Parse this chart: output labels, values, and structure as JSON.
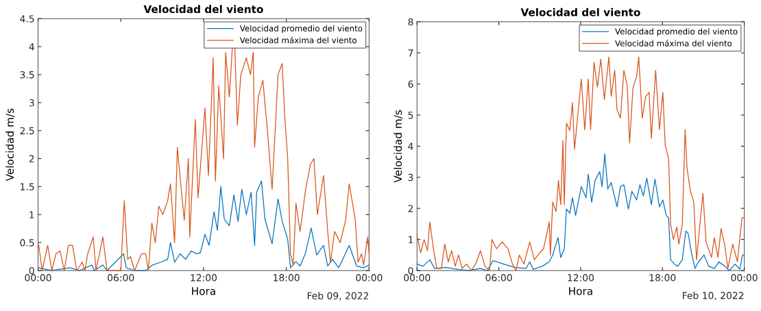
{
  "chart_data": [
    {
      "type": "line",
      "title": "Velocidad del viento",
      "xlabel": "Hora",
      "ylabel": "Velocidad m/s",
      "annotations": [
        "Feb 09, 2022"
      ],
      "xlim": [
        0,
        24
      ],
      "xticks": [
        {
          "value": 0,
          "label": "00:00"
        },
        {
          "value": 6,
          "label": "06:00"
        },
        {
          "value": 12,
          "label": "12:00"
        },
        {
          "value": 18,
          "label": "18:00"
        },
        {
          "value": 24,
          "label": "00:00"
        }
      ],
      "ylim": [
        0,
        4.5
      ],
      "yticks": [
        0,
        0.5,
        1,
        1.5,
        2,
        2.5,
        3,
        3.5,
        4,
        4.5
      ],
      "legend": "top right",
      "grid": false,
      "series": [
        {
          "name": "Velocidad promedio del viento",
          "color": "#0072bd",
          "x": [
            0,
            1,
            2.3,
            3,
            3.9,
            4.1,
            4.7,
            5,
            6.2,
            6.4,
            7,
            7.8,
            8.3,
            8.9,
            9.4,
            9.6,
            9.9,
            10.3,
            10.7,
            11.1,
            11.5,
            11.77,
            12.1,
            12.4,
            12.76,
            13.0,
            13.25,
            13.5,
            13.87,
            14.2,
            14.5,
            14.77,
            15.1,
            15.45,
            15.7,
            15.85,
            16.2,
            16.45,
            16.97,
            17.4,
            17.7,
            18.1,
            18.3,
            18.7,
            19.0,
            19.4,
            19.8,
            20.2,
            20.7,
            21.0,
            21.35,
            21.8,
            22.56,
            23.1,
            23.6,
            24
          ],
          "values": [
            0.05,
            0,
            0.05,
            0,
            0.1,
            0,
            0.1,
            0,
            0.3,
            0.05,
            0,
            0,
            0.1,
            0.15,
            0.2,
            0.5,
            0.15,
            0.3,
            0.2,
            0.35,
            0.3,
            0.32,
            0.65,
            0.45,
            1.05,
            0.72,
            1.5,
            0.92,
            0.8,
            1.35,
            0.88,
            1.45,
            1.0,
            1.4,
            0.45,
            1.4,
            1.6,
            0.92,
            0.48,
            1.28,
            0.88,
            0.56,
            0.05,
            0.16,
            0.08,
            0.32,
            0.76,
            0.28,
            0.45,
            0.08,
            0.2,
            0.05,
            0.45,
            0.08,
            0.05,
            0.1
          ]
        },
        {
          "name": "Velocidad máxima del viento",
          "color": "#d95319",
          "x": [
            0.05,
            0.3,
            0.7,
            1.0,
            1.3,
            1.6,
            1.9,
            2.2,
            2.5,
            2.8,
            3.2,
            3.4,
            3.6,
            4.0,
            4.2,
            4.7,
            5.0,
            5.5,
            6.0,
            6.25,
            6.5,
            6.7,
            7.0,
            7.5,
            7.8,
            8.0,
            8.25,
            8.5,
            8.75,
            9.05,
            9.4,
            9.6,
            9.9,
            10.1,
            10.4,
            10.6,
            10.9,
            11.0,
            11.4,
            11.6,
            12.1,
            12.35,
            12.7,
            12.86,
            13.1,
            13.45,
            13.6,
            13.87,
            14.2,
            14.45,
            14.7,
            15.1,
            15.4,
            15.6,
            15.7,
            15.97,
            16.3,
            16.63,
            16.97,
            17.4,
            17.7,
            17.9,
            18.1,
            18.3,
            18.5,
            18.7,
            19.0,
            19.4,
            19.75,
            20.0,
            20.25,
            20.7,
            21.0,
            21.2,
            21.5,
            21.9,
            22.3,
            22.56,
            23.0,
            23.2,
            23.45,
            23.6,
            23.9,
            24
          ],
          "values": [
            0.45,
            0,
            0.45,
            0,
            0.3,
            0.35,
            0,
            0.45,
            0.45,
            0,
            0.15,
            0,
            0.3,
            0.6,
            0,
            0.6,
            0,
            0,
            0,
            1.25,
            0.2,
            0.25,
            0,
            0.3,
            0.3,
            0,
            0.85,
            0.5,
            1.15,
            1.0,
            1.25,
            1.55,
            0.5,
            2.2,
            1.4,
            0.9,
            2.0,
            0.6,
            2.7,
            1.3,
            2.9,
            1.7,
            3.8,
            1.6,
            3.3,
            2.0,
            3.9,
            3.1,
            4.45,
            2.6,
            3.5,
            3.8,
            3.5,
            3.9,
            2.2,
            3.1,
            3.4,
            2.5,
            1.45,
            3.5,
            3.7,
            2.7,
            2.0,
            0.3,
            0.1,
            1.2,
            0.7,
            1.45,
            1.9,
            2.0,
            1.0,
            1.7,
            0.7,
            0.15,
            0.7,
            0.5,
            0.9,
            1.55,
            0.9,
            0.15,
            0.3,
            0.1,
            0.6,
            0.3
          ]
        }
      ]
    },
    {
      "type": "line",
      "title": "Velocidad del viento",
      "xlabel": "Hora",
      "ylabel": "Velocidad m/s",
      "annotations": [
        "Feb 10, 2022"
      ],
      "xlim": [
        0,
        24
      ],
      "xticks": [
        {
          "value": 0,
          "label": "00:00"
        },
        {
          "value": 6,
          "label": "06:00"
        },
        {
          "value": 12,
          "label": "12:00"
        },
        {
          "value": 18,
          "label": "18:00"
        },
        {
          "value": 24,
          "label": "00:00"
        }
      ],
      "ylim": [
        0,
        8
      ],
      "yticks": [
        0,
        1,
        2,
        3,
        4,
        5,
        6,
        7,
        8
      ],
      "legend": "top right",
      "grid": false,
      "series": [
        {
          "name": "Velocidad promedio del viento",
          "color": "#0072bd",
          "x": [
            0,
            0.44,
            0.94,
            1.28,
            2.12,
            2.96,
            3.8,
            4.65,
            5.15,
            5.57,
            6.33,
            7.17,
            8.0,
            8.27,
            8.52,
            9.19,
            9.7,
            9.95,
            10.34,
            10.54,
            10.8,
            10.96,
            11.2,
            11.4,
            11.63,
            12.05,
            12.4,
            12.56,
            12.81,
            13.06,
            13.4,
            13.57,
            13.77,
            13.99,
            14.24,
            14.67,
            14.92,
            15.17,
            15.5,
            15.76,
            16.1,
            16.35,
            16.6,
            16.85,
            17.19,
            17.45,
            17.78,
            18.03,
            18.28,
            18.45,
            18.6,
            18.87,
            19.13,
            19.46,
            19.71,
            19.88,
            20.13,
            20.39,
            20.64,
            21.05,
            21.4,
            21.8,
            22.15,
            22.58,
            22.9,
            23.33,
            23.67,
            23.87,
            24
          ],
          "values": [
            0.21,
            0.14,
            0.35,
            0.07,
            0.1,
            0.04,
            0,
            0.07,
            0,
            0.32,
            0.21,
            0.1,
            0.07,
            0.28,
            0.04,
            0.14,
            0.28,
            0.5,
            1.06,
            0.42,
            0.7,
            1.98,
            1.84,
            2.34,
            1.77,
            2.7,
            2.34,
            3.1,
            2.2,
            2.9,
            3.18,
            2.7,
            3.75,
            2.62,
            2.83,
            2.05,
            2.7,
            2.76,
            1.98,
            2.55,
            2.27,
            2.76,
            2.4,
            2.97,
            2.12,
            2.94,
            2.05,
            2.27,
            1.77,
            1.7,
            0.35,
            0.21,
            0.14,
            0.35,
            1.27,
            1.2,
            0.57,
            0.07,
            0.28,
            0.5,
            0.14,
            0.07,
            0.28,
            0.14,
            0,
            0.21,
            0.04,
            0.5,
            0.5
          ]
        },
        {
          "name": "Velocidad máxima del viento",
          "color": "#d95319",
          "x": [
            0,
            0.27,
            0.52,
            0.77,
            0.94,
            1.2,
            1.45,
            1.78,
            2.04,
            2.29,
            2.54,
            2.8,
            3.05,
            3.3,
            3.64,
            3.97,
            4.3,
            4.65,
            4.98,
            5.32,
            5.5,
            5.83,
            6.25,
            6.67,
            7.0,
            7.26,
            7.5,
            7.84,
            8.27,
            8.6,
            9.0,
            9.28,
            9.7,
            9.78,
            9.95,
            10.2,
            10.37,
            10.54,
            10.7,
            10.8,
            10.96,
            11.2,
            11.4,
            11.55,
            12.05,
            12.3,
            12.56,
            12.73,
            12.98,
            13.23,
            13.48,
            13.74,
            14.07,
            14.24,
            14.5,
            14.67,
            14.92,
            15.17,
            15.42,
            15.59,
            15.84,
            16.1,
            16.26,
            16.52,
            16.77,
            17.02,
            17.19,
            17.5,
            17.78,
            18.03,
            18.2,
            18.45,
            18.6,
            18.8,
            19.05,
            19.2,
            19.46,
            19.66,
            19.8,
            20.05,
            20.3,
            20.5,
            20.7,
            20.97,
            21.2,
            21.6,
            21.8,
            22.07,
            22.3,
            22.58,
            22.8,
            23.16,
            23.5,
            23.83,
            24
          ],
          "values": [
            1.13,
            0.57,
            1.0,
            0.64,
            1.56,
            0.7,
            0.07,
            0.07,
            0.85,
            0.28,
            0.64,
            0.14,
            0.5,
            0.07,
            0.21,
            0,
            0.21,
            0.64,
            0.14,
            0,
            1.0,
            0.7,
            0.92,
            0.7,
            0.21,
            0,
            0.5,
            0.21,
            0.92,
            0.35,
            0.57,
            0.7,
            1.56,
            0.5,
            2.2,
            1.9,
            2.9,
            2.12,
            4.18,
            2.12,
            4.74,
            4.5,
            5.4,
            3.9,
            6.16,
            4.53,
            6.16,
            4.53,
            6.7,
            5.9,
            6.8,
            5.5,
            6.87,
            5.6,
            6.44,
            5.17,
            4.9,
            6.44,
            5.95,
            4.1,
            5.88,
            6.23,
            6.87,
            4.9,
            5.6,
            5.73,
            4.25,
            6.44,
            4.53,
            5.73,
            4.04,
            3.6,
            1.5,
            1.0,
            1.4,
            0.85,
            1.5,
            4.53,
            3.3,
            2.55,
            2.2,
            0.35,
            1.27,
            2.48,
            0.92,
            0.42,
            1.06,
            0.42,
            1.35,
            0.78,
            0.07,
            0.85,
            0.28,
            1.7,
            1.7
          ]
        }
      ]
    }
  ]
}
